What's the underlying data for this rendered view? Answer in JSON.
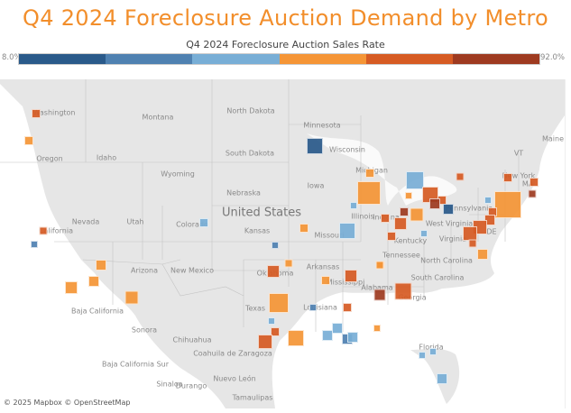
{
  "title": "Q4 2024 Foreclosure Auction Demand by Metro",
  "legend": {
    "title": "Q4 2024 Foreclosure Auction Sales Rate",
    "min_label": "8.0%",
    "max_label": "92.0%",
    "min": 8.0,
    "max": 92.0,
    "colors": [
      "#2a5a8a",
      "#4f81b1",
      "#78aed6",
      "#f59536",
      "#d65b23",
      "#9e3a20"
    ]
  },
  "map": {
    "labels": [
      "Washington",
      "Montana",
      "North Dakota",
      "Minnesota",
      "Oregon",
      "Idaho",
      "South Dakota",
      "Wisconsin",
      "Wyoming",
      "Michigan",
      "Maine",
      "Nebraska",
      "Iowa",
      "VT",
      "New York",
      "MA",
      "United States",
      "Nevada",
      "Utah",
      "Colorado",
      "Illinois",
      "Indiana",
      "Pennsylvania",
      "California",
      "Kansas",
      "Missouri",
      "West Virginia",
      "Virginia",
      "DE",
      "Kentucky",
      "Tennessee",
      "North Carolina",
      "Oklahoma",
      "Arkansas",
      "Arizona",
      "New Mexico",
      "South Carolina",
      "Mississippi",
      "Alabama",
      "Georgia",
      "Texas",
      "Louisiana",
      "Florida",
      "Baja California",
      "Sonora",
      "Chihuahua",
      "Coahuila de Zaragoza",
      "Baja California Sur",
      "Nuevo León",
      "Sinaloa",
      "Durango",
      "Tamaulipas"
    ],
    "marker_rate_buckets": [
      5,
      4,
      5,
      2,
      4,
      4,
      4,
      4,
      3,
      2,
      1,
      4,
      4,
      3,
      3,
      4,
      3,
      4,
      5,
      5,
      6,
      1,
      4,
      6,
      5,
      5,
      5,
      3,
      5,
      5,
      5,
      6,
      4,
      3,
      5,
      5,
      5,
      5,
      5,
      4,
      5,
      4,
      4,
      3,
      5,
      5,
      4,
      4,
      5,
      4,
      6,
      5,
      4,
      5,
      2,
      3,
      3,
      2,
      3,
      4,
      3,
      3,
      3
    ],
    "attribution": "© 2025 Mapbox © OpenStreetMap"
  }
}
